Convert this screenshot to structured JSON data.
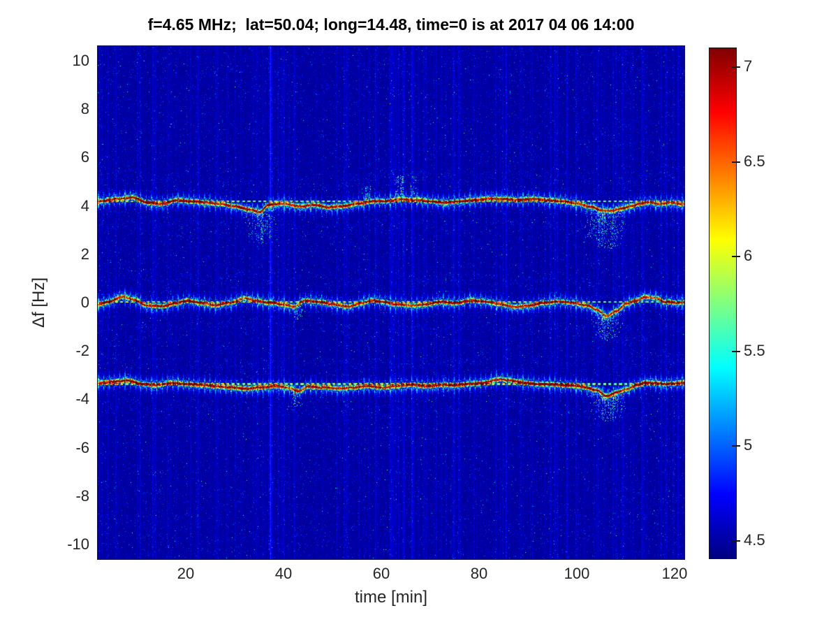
{
  "figure": {
    "title": "f=4.65 MHz;  lat=50.04; long=14.48, time=0 is at 2017 04 06 14:00",
    "xlabel": "time [min]",
    "ylabel": "Δf [Hz]"
  },
  "chart_data": {
    "type": "heatmap",
    "title": "f=4.65 MHz;  lat=50.04; long=14.48, time=0 is at 2017 04 06 14:00",
    "xlabel": "time [min]",
    "ylabel": "Δf [Hz]",
    "xlim": [
      2,
      122
    ],
    "ylim": [
      -10.6,
      10.6
    ],
    "xticks": [
      20,
      40,
      60,
      80,
      100,
      120
    ],
    "yticks": [
      10,
      8,
      6,
      4,
      2,
      0,
      -2,
      -4,
      -6,
      -8,
      -10
    ],
    "grid": false,
    "colorbar": {
      "colormap": "jet",
      "range": [
        4.4,
        7.1
      ],
      "ticks": [
        4.5,
        5,
        5.5,
        6,
        6.5,
        7
      ],
      "position": "right"
    },
    "background_noise": {
      "floor": 4.43,
      "speckle_max": 5.7
    },
    "marker_interval_min": 1.1,
    "series": [
      {
        "name": "upper Doppler trace ~ +4.2 Hz",
        "nominal_df": 4.2,
        "peak_value": 7.0,
        "points": [
          [
            2,
            4.2
          ],
          [
            6,
            4.3
          ],
          [
            9,
            4.35
          ],
          [
            12,
            4.15
          ],
          [
            15,
            4.1
          ],
          [
            18,
            4.25
          ],
          [
            21,
            4.2
          ],
          [
            24,
            4.15
          ],
          [
            27,
            4.1
          ],
          [
            30,
            4.0
          ],
          [
            33,
            3.85
          ],
          [
            35,
            3.75
          ],
          [
            37,
            4.05
          ],
          [
            40,
            4.1
          ],
          [
            43,
            4.0
          ],
          [
            46,
            4.05
          ],
          [
            49,
            3.95
          ],
          [
            52,
            4.0
          ],
          [
            55,
            4.1
          ],
          [
            58,
            4.2
          ],
          [
            61,
            4.2
          ],
          [
            64,
            4.3
          ],
          [
            67,
            4.25
          ],
          [
            70,
            4.2
          ],
          [
            73,
            4.15
          ],
          [
            76,
            4.2
          ],
          [
            79,
            4.25
          ],
          [
            82,
            4.3
          ],
          [
            85,
            4.3
          ],
          [
            88,
            4.25
          ],
          [
            91,
            4.3
          ],
          [
            94,
            4.25
          ],
          [
            97,
            4.2
          ],
          [
            100,
            4.1
          ],
          [
            103,
            3.95
          ],
          [
            105,
            3.8
          ],
          [
            107,
            3.8
          ],
          [
            109,
            3.9
          ],
          [
            111,
            4.0
          ],
          [
            113,
            4.1
          ],
          [
            115,
            4.15
          ],
          [
            117,
            4.1
          ],
          [
            119,
            4.15
          ],
          [
            121,
            4.1
          ]
        ]
      },
      {
        "name": "central Doppler trace ~ 0 Hz",
        "nominal_df": 0.05,
        "peak_value": 7.0,
        "points": [
          [
            2,
            -0.05
          ],
          [
            4,
            0.05
          ],
          [
            7,
            0.25
          ],
          [
            9,
            0.15
          ],
          [
            12,
            -0.1
          ],
          [
            15,
            -0.15
          ],
          [
            18,
            0.0
          ],
          [
            20,
            0.1
          ],
          [
            23,
            0.0
          ],
          [
            26,
            -0.1
          ],
          [
            29,
            0.0
          ],
          [
            32,
            0.2
          ],
          [
            34,
            0.1
          ],
          [
            37,
            0.0
          ],
          [
            40,
            -0.05
          ],
          [
            42,
            -0.15
          ],
          [
            44,
            0.1
          ],
          [
            47,
            0.05
          ],
          [
            50,
            -0.05
          ],
          [
            53,
            -0.15
          ],
          [
            56,
            0.0
          ],
          [
            58,
            0.1
          ],
          [
            60,
            0.05
          ],
          [
            63,
            -0.05
          ],
          [
            66,
            -0.1
          ],
          [
            69,
            -0.05
          ],
          [
            72,
            0.05
          ],
          [
            75,
            0.0
          ],
          [
            78,
            0.1
          ],
          [
            81,
            0.05
          ],
          [
            84,
            -0.05
          ],
          [
            87,
            -0.15
          ],
          [
            90,
            -0.1
          ],
          [
            93,
            0.0
          ],
          [
            96,
            0.05
          ],
          [
            99,
            0.0
          ],
          [
            102,
            -0.1
          ],
          [
            104,
            -0.3
          ],
          [
            106,
            -0.55
          ],
          [
            108,
            -0.35
          ],
          [
            110,
            -0.05
          ],
          [
            112,
            0.1
          ],
          [
            114,
            0.25
          ],
          [
            116,
            0.2
          ],
          [
            118,
            0.05
          ],
          [
            121,
            0.0
          ]
        ]
      },
      {
        "name": "lower Doppler trace ~ -3.35 Hz",
        "nominal_df": -3.35,
        "peak_value": 7.0,
        "points": [
          [
            2,
            -3.3
          ],
          [
            5,
            -3.25
          ],
          [
            8,
            -3.2
          ],
          [
            11,
            -3.35
          ],
          [
            14,
            -3.4
          ],
          [
            17,
            -3.3
          ],
          [
            20,
            -3.35
          ],
          [
            23,
            -3.4
          ],
          [
            26,
            -3.45
          ],
          [
            29,
            -3.5
          ],
          [
            32,
            -3.55
          ],
          [
            35,
            -3.5
          ],
          [
            38,
            -3.45
          ],
          [
            41,
            -3.5
          ],
          [
            43,
            -3.65
          ],
          [
            45,
            -3.45
          ],
          [
            48,
            -3.5
          ],
          [
            51,
            -3.55
          ],
          [
            54,
            -3.5
          ],
          [
            57,
            -3.45
          ],
          [
            60,
            -3.5
          ],
          [
            63,
            -3.45
          ],
          [
            66,
            -3.4
          ],
          [
            69,
            -3.45
          ],
          [
            72,
            -3.4
          ],
          [
            75,
            -3.4
          ],
          [
            78,
            -3.35
          ],
          [
            81,
            -3.3
          ],
          [
            84,
            -3.15
          ],
          [
            86,
            -3.2
          ],
          [
            89,
            -3.3
          ],
          [
            92,
            -3.35
          ],
          [
            95,
            -3.35
          ],
          [
            98,
            -3.4
          ],
          [
            101,
            -3.45
          ],
          [
            104,
            -3.6
          ],
          [
            106,
            -3.85
          ],
          [
            108,
            -3.7
          ],
          [
            110,
            -3.55
          ],
          [
            112,
            -3.4
          ],
          [
            114,
            -3.3
          ],
          [
            116,
            -3.3
          ],
          [
            118,
            -3.35
          ],
          [
            121,
            -3.3
          ]
        ]
      }
    ],
    "events": [
      {
        "series": 0,
        "t": 35,
        "width_min": 3.5,
        "depth_hz": 1.1,
        "dir": "below"
      },
      {
        "series": 0,
        "t": 105.5,
        "width_min": 4.5,
        "depth_hz": 1.25,
        "dir": "below"
      },
      {
        "series": 1,
        "t": 106,
        "width_min": 3.5,
        "depth_hz": 0.85,
        "dir": "below"
      },
      {
        "series": 2,
        "t": 106.5,
        "width_min": 4.0,
        "depth_hz": 0.85,
        "dir": "below"
      },
      {
        "series": 1,
        "t": 43,
        "width_min": 1.3,
        "depth_hz": 0.55,
        "dir": "below"
      },
      {
        "series": 2,
        "t": 42.5,
        "width_min": 1.3,
        "depth_hz": 0.55,
        "dir": "below"
      },
      {
        "series": 0,
        "t": 65,
        "width_min": 2.5,
        "depth_hz": 0.75,
        "dir": "above"
      },
      {
        "series": 0,
        "t": 57,
        "width_min": 1.5,
        "depth_hz": 0.5,
        "dir": "above"
      }
    ]
  },
  "colors": {
    "background": "#ffffff",
    "axis_text": "#262626",
    "title_text": "#000000",
    "noise_base": "#0a0aa0",
    "trace_core": "#b00000",
    "trace_band": "#ffe000",
    "trace_halo": "#00e0e0"
  }
}
